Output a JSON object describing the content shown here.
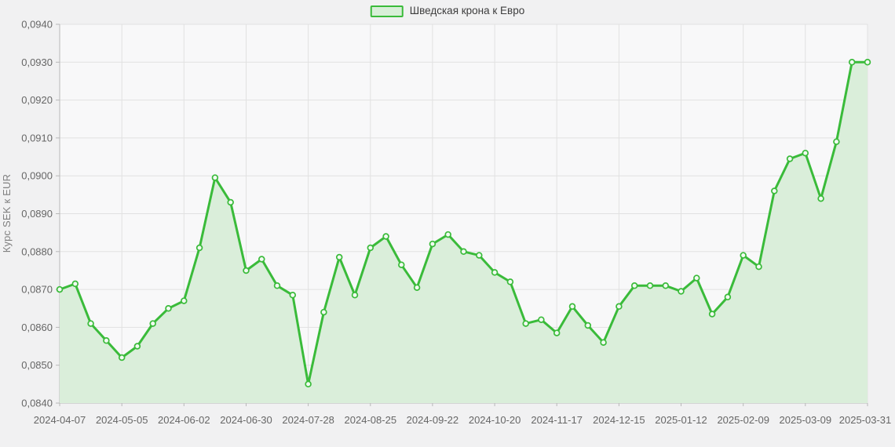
{
  "legend": {
    "label": "Шведская крона к Евро"
  },
  "chart_data": {
    "type": "area",
    "title": "",
    "xlabel": "",
    "ylabel": "Курс SEK к EUR",
    "legend_position": "top-center",
    "grid": true,
    "ylim": [
      0.084,
      0.094
    ],
    "y_ticks": {
      "values": [
        0.084,
        0.085,
        0.086,
        0.087,
        0.088,
        0.089,
        0.09,
        0.091,
        0.092,
        0.093,
        0.094
      ],
      "labels": [
        "0,0840",
        "0,0850",
        "0,0860",
        "0,0870",
        "0,0880",
        "0,0890",
        "0,0900",
        "0,0910",
        "0,0920",
        "0,0930",
        "0,0940"
      ]
    },
    "x_tick_indices": [
      0,
      4,
      8,
      12,
      16,
      20,
      24,
      28,
      32,
      36,
      40,
      44,
      48,
      52
    ],
    "series": [
      {
        "name": "Шведская крона к Евро",
        "x": [
          "2024-04-07",
          "2024-04-14",
          "2024-04-21",
          "2024-04-28",
          "2024-05-05",
          "2024-05-12",
          "2024-05-19",
          "2024-05-26",
          "2024-06-02",
          "2024-06-09",
          "2024-06-16",
          "2024-06-23",
          "2024-06-30",
          "2024-07-07",
          "2024-07-14",
          "2024-07-21",
          "2024-07-28",
          "2024-08-04",
          "2024-08-11",
          "2024-08-18",
          "2024-08-25",
          "2024-09-01",
          "2024-09-08",
          "2024-09-15",
          "2024-09-22",
          "2024-09-29",
          "2024-10-06",
          "2024-10-13",
          "2024-10-20",
          "2024-10-27",
          "2024-11-03",
          "2024-11-10",
          "2024-11-17",
          "2024-11-24",
          "2024-12-01",
          "2024-12-08",
          "2024-12-15",
          "2024-12-22",
          "2024-12-29",
          "2025-01-05",
          "2025-01-12",
          "2025-01-19",
          "2025-01-26",
          "2025-02-02",
          "2025-02-09",
          "2025-02-16",
          "2025-02-23",
          "2025-03-02",
          "2025-03-09",
          "2025-03-16",
          "2025-03-23",
          "2025-03-30",
          "2025-03-31"
        ],
        "values": [
          0.087,
          0.08715,
          0.0861,
          0.08565,
          0.0852,
          0.0855,
          0.0861,
          0.0865,
          0.0867,
          0.0881,
          0.08995,
          0.0893,
          0.0875,
          0.0878,
          0.0871,
          0.08685,
          0.0845,
          0.0864,
          0.08785,
          0.08685,
          0.0881,
          0.0884,
          0.08765,
          0.08705,
          0.0882,
          0.08845,
          0.088,
          0.0879,
          0.08745,
          0.0872,
          0.0861,
          0.0862,
          0.08585,
          0.08655,
          0.08605,
          0.0856,
          0.08655,
          0.0871,
          0.0871,
          0.0871,
          0.08695,
          0.0873,
          0.08635,
          0.0868,
          0.0879,
          0.0876,
          0.0896,
          0.09045,
          0.0906,
          0.0894,
          0.0909,
          0.093,
          0.093
        ]
      }
    ]
  },
  "colors": {
    "line": "#3abb3a",
    "area": "#daeeda",
    "marker_fill": "#f2faf2",
    "grid": "#e1e1e1",
    "axis": "#b8b8b8",
    "tick_text": "#666666",
    "axis_title_text": "#808080",
    "legend_text": "#3d3d3d",
    "legend_swatch_fill": "#d8efd8",
    "page_bg": "#f1f1f2",
    "plot_bg": "#f8f8f9"
  }
}
